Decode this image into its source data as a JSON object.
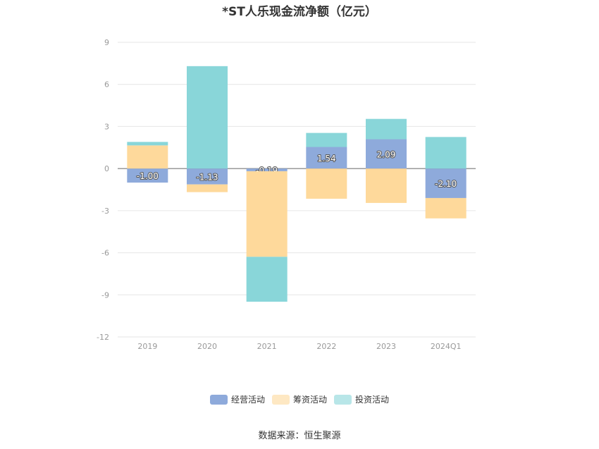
{
  "chart_data": {
    "type": "bar",
    "stacked": true,
    "title": "*ST人乐现金流净额（亿元）",
    "categories": [
      "2019",
      "2020",
      "2021",
      "2022",
      "2023",
      "2024Q1"
    ],
    "series": [
      {
        "name": "经营活动",
        "color": "#8eaadb",
        "values": [
          -1.0,
          -1.13,
          -0.19,
          1.54,
          2.09,
          -2.1
        ],
        "labels": [
          "-1.00",
          "-1.13",
          "-0.19",
          "1.54",
          "2.09",
          "-2.10"
        ]
      },
      {
        "name": "筹资活动",
        "color": "#fed99b",
        "values": [
          1.65,
          -0.55,
          -6.1,
          -2.15,
          -2.45,
          -1.45
        ]
      },
      {
        "name": "投资活动",
        "color": "#89d6d9",
        "values": [
          0.25,
          7.3,
          -3.2,
          1.0,
          1.45,
          2.25
        ]
      }
    ],
    "ylim": [
      -12,
      9
    ],
    "yticks": [
      9,
      6,
      3,
      0,
      -3,
      -6,
      -9,
      -12
    ],
    "xlabel": "",
    "ylabel": "",
    "grid": true,
    "legend_position": "bottom"
  },
  "footer": {
    "source": "数据来源：恒生聚源"
  }
}
